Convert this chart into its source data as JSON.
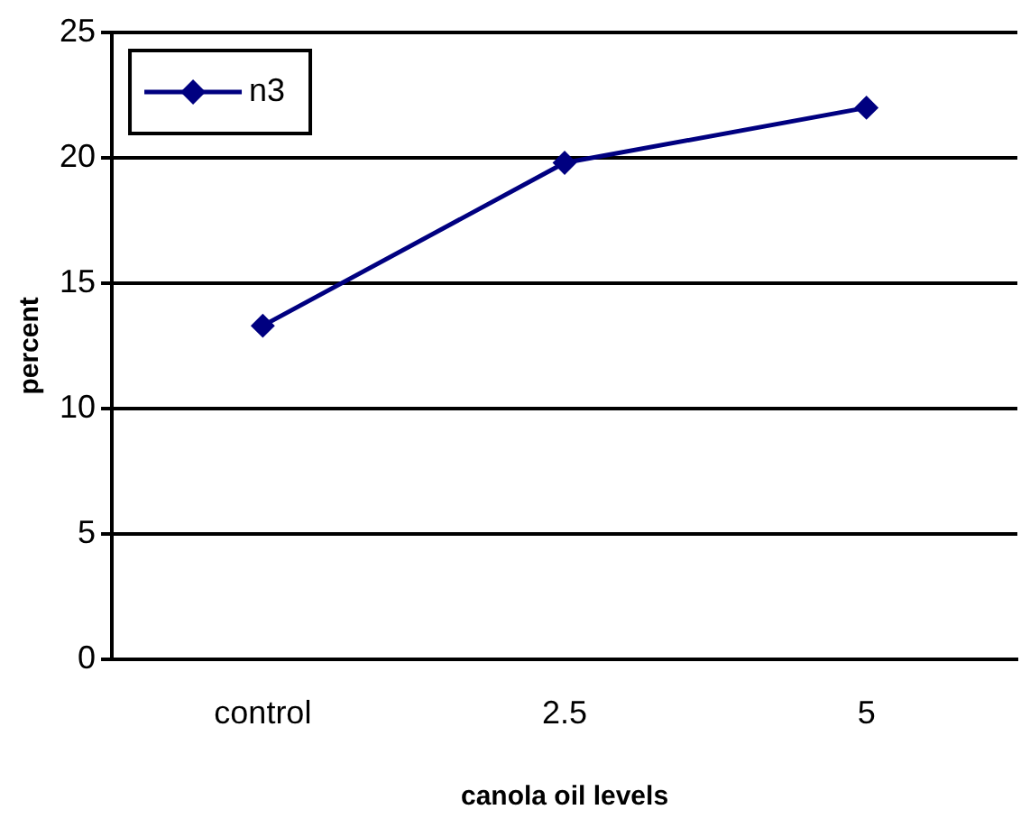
{
  "chart_data": {
    "type": "line",
    "xlabel": "canola oil levels",
    "ylabel": "percent",
    "categories": [
      "control",
      "2.5",
      "5"
    ],
    "series": [
      {
        "name": "n3",
        "color": "#000080",
        "values": [
          13.3,
          19.8,
          22.0
        ]
      }
    ],
    "ylim": [
      0,
      25
    ],
    "yticks": [
      0,
      5,
      10,
      15,
      20,
      25
    ],
    "grid": "y",
    "legend": "top left",
    "marker": "diamond"
  }
}
